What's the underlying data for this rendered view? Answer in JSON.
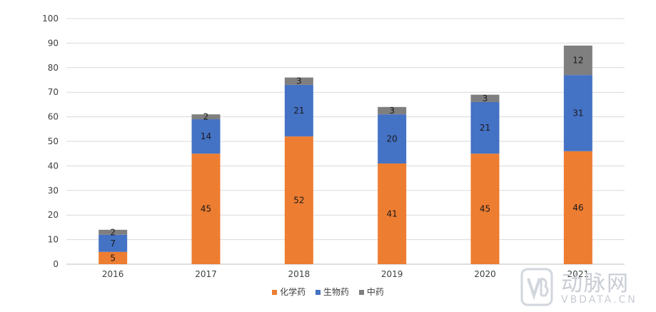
{
  "chart_data": {
    "type": "bar",
    "stacked": true,
    "categories": [
      "2016",
      "2017",
      "2018",
      "2019",
      "2020",
      "2021"
    ],
    "series": [
      {
        "name": "化学药",
        "color": "#ED7D31",
        "values": [
          5,
          45,
          52,
          41,
          45,
          46
        ]
      },
      {
        "name": "生物药",
        "color": "#4472C4",
        "values": [
          7,
          14,
          21,
          20,
          21,
          31
        ]
      },
      {
        "name": "中药",
        "color": "#7F7F7F",
        "values": [
          2,
          2,
          3,
          3,
          3,
          12
        ]
      }
    ],
    "ylim": [
      0,
      100
    ],
    "yticks": [
      0,
      10,
      20,
      30,
      40,
      50,
      60,
      70,
      80,
      90,
      100
    ],
    "grid": true,
    "legend_position": "bottom",
    "title": "",
    "xlabel": "",
    "ylabel": ""
  },
  "watermark": {
    "text": "动脉网",
    "subtext": "VBDATA.CN"
  }
}
